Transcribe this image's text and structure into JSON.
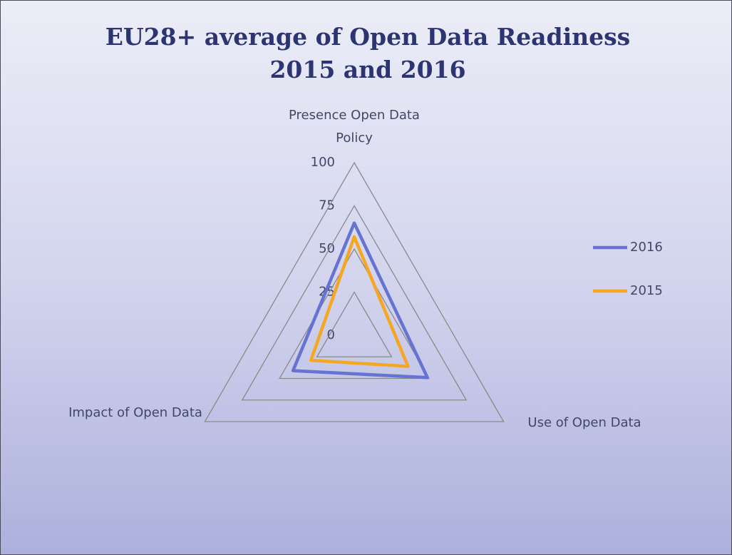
{
  "chart_data": {
    "type": "radar",
    "title": "EU28+ average of Open Data Readiness 2015 and 2016",
    "categories": [
      "Presence Open Data Policy",
      "Use of Open Data",
      "Impact of Open Data"
    ],
    "series": [
      {
        "name": "2016",
        "color": "#6673d0",
        "values": [
          65,
          49,
          41
        ]
      },
      {
        "name": "2015",
        "color": "#f5a623",
        "values": [
          57,
          36,
          29
        ]
      }
    ],
    "rlim": [
      0,
      100
    ],
    "rticks": [
      0,
      25,
      50,
      75,
      100
    ],
    "grid": true,
    "legend": "right"
  }
}
